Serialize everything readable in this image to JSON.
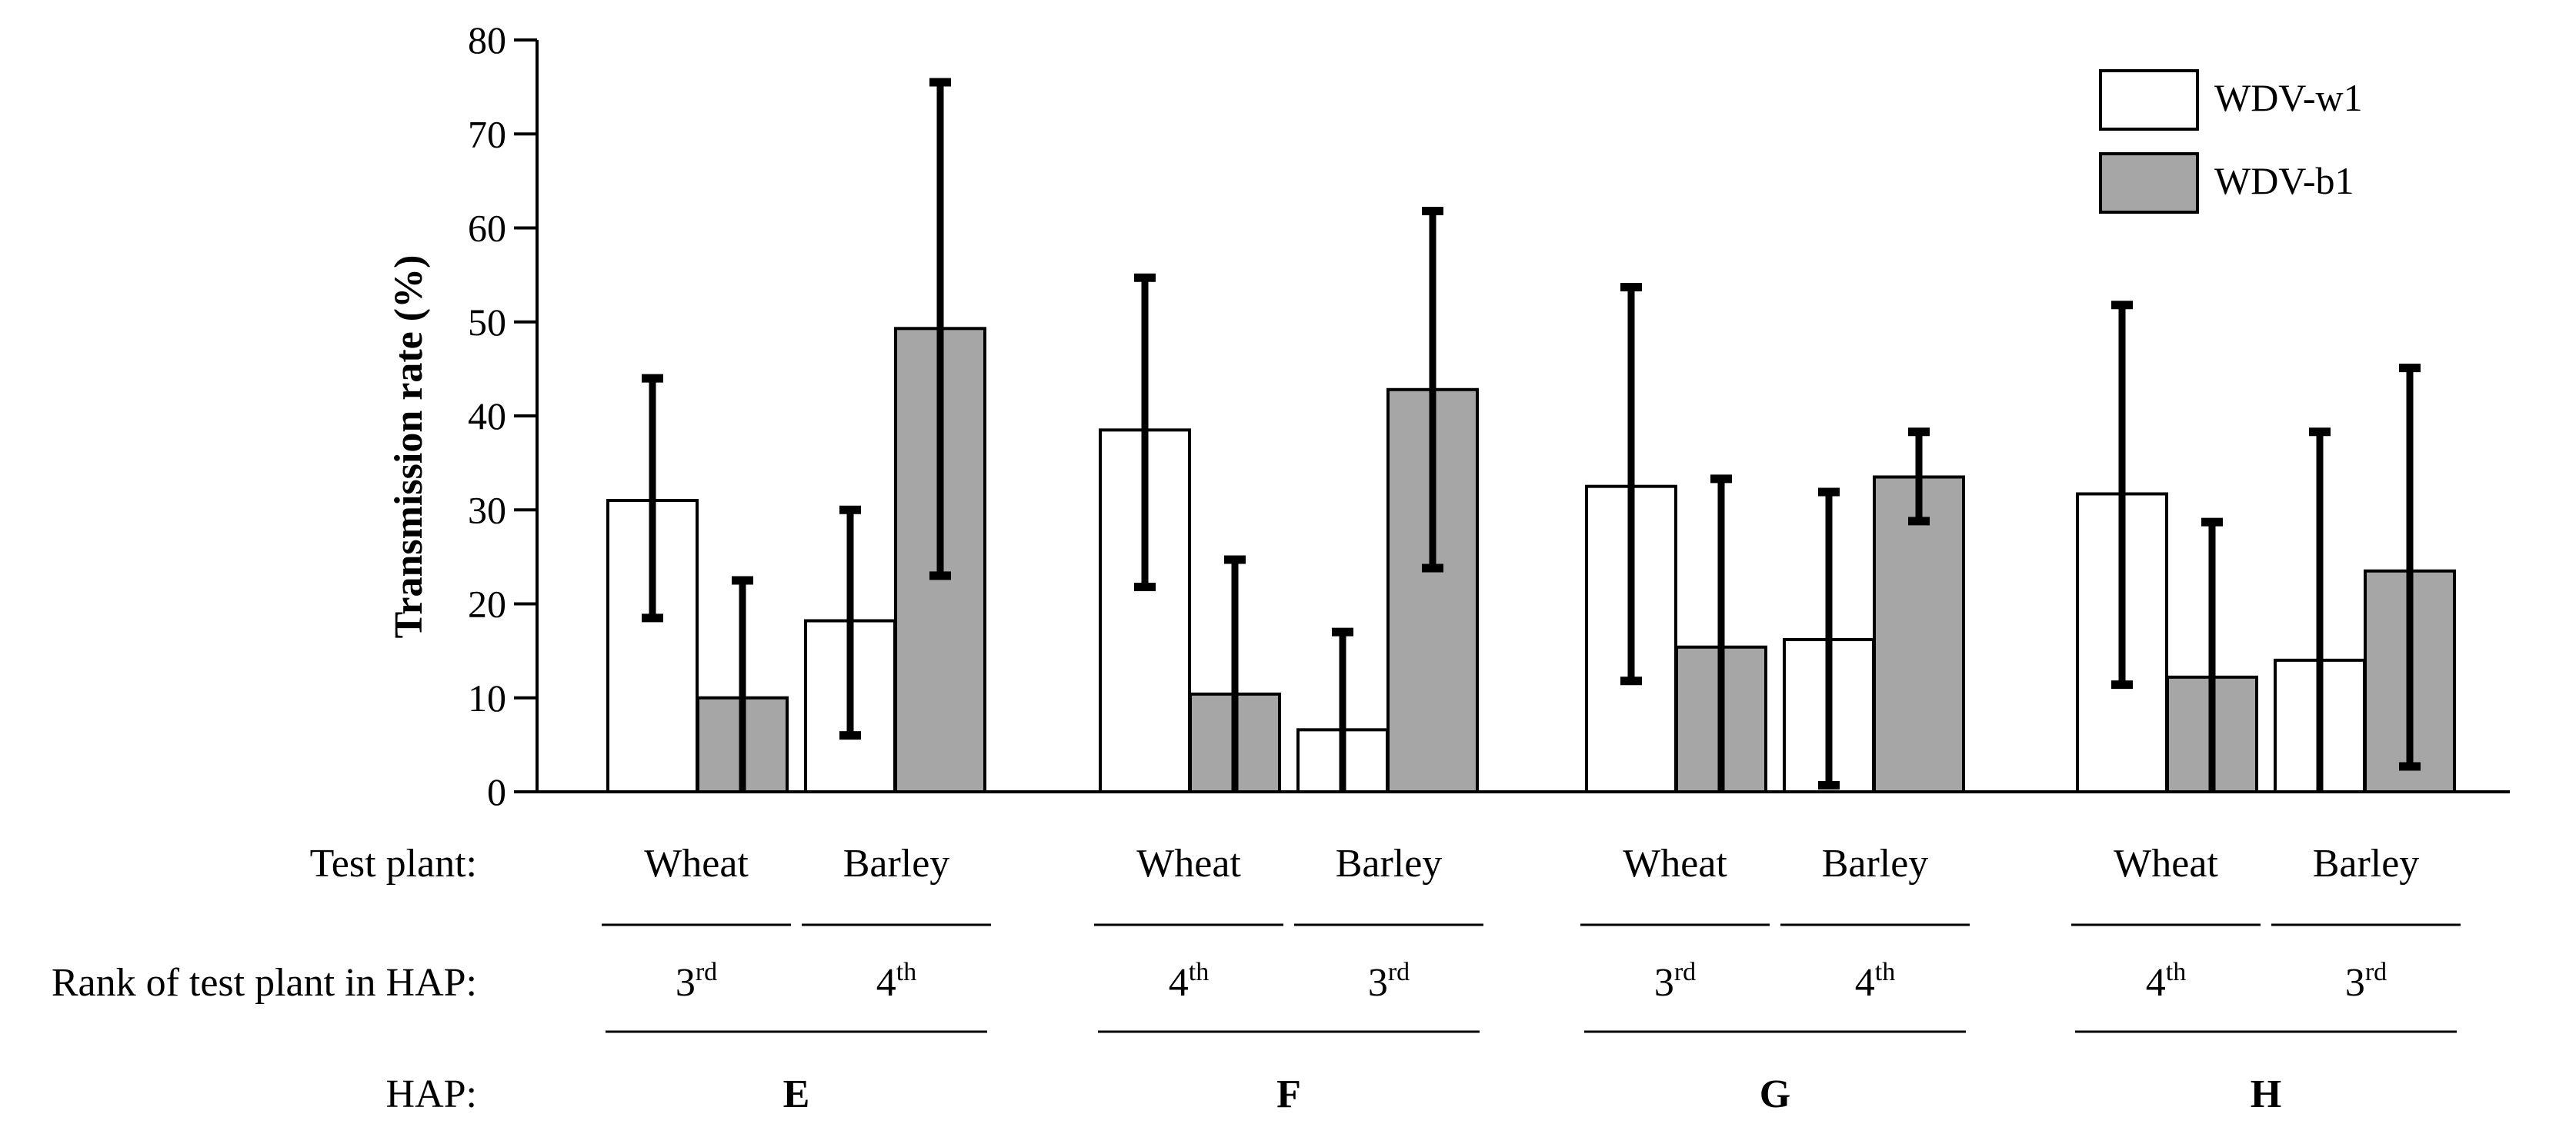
{
  "chart_data": {
    "type": "bar",
    "title": "",
    "ylabel": "Transmission rate (%)",
    "ylim": [
      0,
      80
    ],
    "yticks": [
      "0",
      "10",
      "20",
      "30",
      "40",
      "50",
      "60",
      "70",
      "80"
    ],
    "legend": {
      "position": "top-right",
      "entries": [
        {
          "name": "WDV-w1",
          "color": "#ffffff"
        },
        {
          "name": "WDV-b1",
          "color": "#a6a6a6"
        }
      ]
    },
    "row_labels": {
      "test_plant": "Test plant:",
      "rank": "Rank of test plant in HAP:",
      "hap": "HAP:"
    },
    "groups": [
      {
        "hap": "E",
        "plants": [
          {
            "plant": "Wheat",
            "rank": "3",
            "rank_sup": "rd",
            "bars": [
              {
                "series": "WDV-w1",
                "value": 31.0,
                "err_low": 18.5,
                "err_high": 44.0
              },
              {
                "series": "WDV-b1",
                "value": 10.0,
                "err_low": 0.0,
                "err_high": 22.5
              }
            ]
          },
          {
            "plant": "Barley",
            "rank": "4",
            "rank_sup": "th",
            "bars": [
              {
                "series": "WDV-w1",
                "value": 18.2,
                "err_low": 6.0,
                "err_high": 30.0
              },
              {
                "series": "WDV-b1",
                "value": 49.3,
                "err_low": 23.0,
                "err_high": 75.5
              }
            ]
          }
        ]
      },
      {
        "hap": "F",
        "plants": [
          {
            "plant": "Wheat",
            "rank": "4",
            "rank_sup": "th",
            "bars": [
              {
                "series": "WDV-w1",
                "value": 38.5,
                "err_low": 21.8,
                "err_high": 54.7
              },
              {
                "series": "WDV-b1",
                "value": 10.4,
                "err_low": 0.0,
                "err_high": 24.7
              }
            ]
          },
          {
            "plant": "Barley",
            "rank": "3",
            "rank_sup": "rd",
            "bars": [
              {
                "series": "WDV-w1",
                "value": 6.6,
                "err_low": 0.0,
                "err_high": 17.0
              },
              {
                "series": "WDV-b1",
                "value": 42.8,
                "err_low": 23.8,
                "err_high": 61.8
              }
            ]
          }
        ]
      },
      {
        "hap": "G",
        "plants": [
          {
            "plant": "Wheat",
            "rank": "3",
            "rank_sup": "rd",
            "bars": [
              {
                "series": "WDV-w1",
                "value": 32.5,
                "err_low": 11.8,
                "err_high": 53.7
              },
              {
                "series": "WDV-b1",
                "value": 15.4,
                "err_low": 0.0,
                "err_high": 33.3
              }
            ]
          },
          {
            "plant": "Barley",
            "rank": "4",
            "rank_sup": "th",
            "bars": [
              {
                "series": "WDV-w1",
                "value": 16.2,
                "err_low": 0.7,
                "err_high": 31.9
              },
              {
                "series": "WDV-b1",
                "value": 33.5,
                "err_low": 28.8,
                "err_high": 38.3
              }
            ]
          }
        ]
      },
      {
        "hap": "H",
        "plants": [
          {
            "plant": "Wheat",
            "rank": "4",
            "rank_sup": "th",
            "bars": [
              {
                "series": "WDV-w1",
                "value": 31.7,
                "err_low": 11.4,
                "err_high": 51.8
              },
              {
                "series": "WDV-b1",
                "value": 12.2,
                "err_low": 0.0,
                "err_high": 28.7
              }
            ]
          },
          {
            "plant": "Barley",
            "rank": "3",
            "rank_sup": "rd",
            "bars": [
              {
                "series": "WDV-w1",
                "value": 14.0,
                "err_low": 0.0,
                "err_high": 38.3
              },
              {
                "series": "WDV-b1",
                "value": 23.5,
                "err_low": 2.7,
                "err_high": 45.1
              }
            ]
          }
        ]
      }
    ]
  }
}
